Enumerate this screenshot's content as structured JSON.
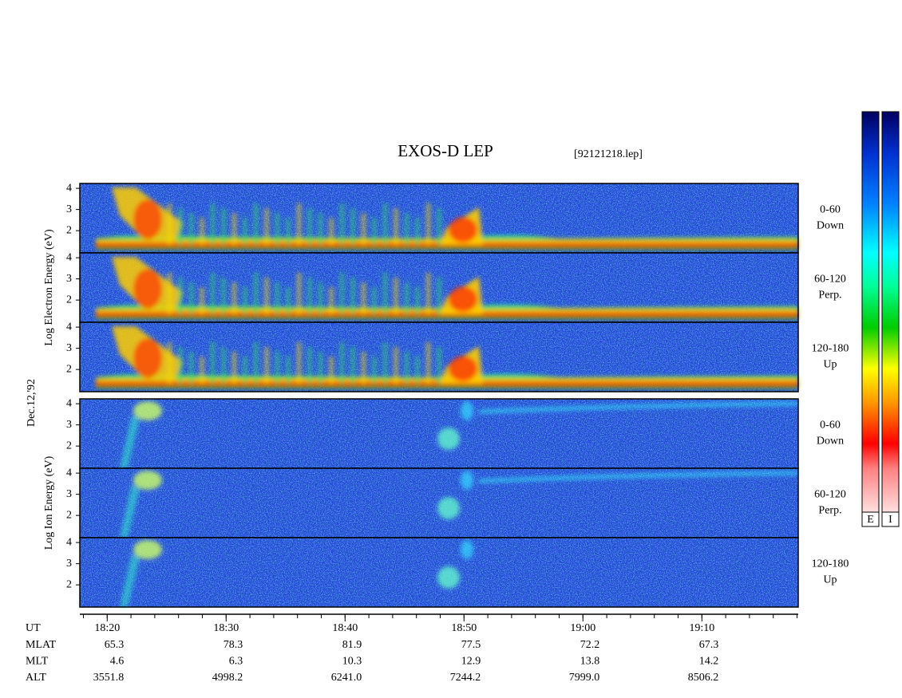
{
  "chart_data": {
    "type": "spectrogram",
    "title": "EXOS-D LEP",
    "subtitle": "[92121218.lep]",
    "date_label": "Dec.12,'92",
    "groups": [
      {
        "y_label": "Log Electron Energy (eV)",
        "species": "electron",
        "panels": [
          {
            "label": "0-60",
            "sublabel": "Down"
          },
          {
            "label": "60-120",
            "sublabel": "Perp."
          },
          {
            "label": "120-180",
            "sublabel": "Up"
          }
        ]
      },
      {
        "y_label": "Log Ion Energy (eV)",
        "species": "ion",
        "panels": [
          {
            "label": "0-60",
            "sublabel": "Down"
          },
          {
            "label": "60-120",
            "sublabel": "Perp."
          },
          {
            "label": "120-180",
            "sublabel": "Up"
          }
        ]
      }
    ],
    "ylim": [
      0.95,
      4.23
    ],
    "yticks": [
      2,
      3,
      4
    ],
    "xlim": [
      1097.7,
      1158.1
    ],
    "x_label": "UT",
    "xticks": [
      {
        "value": 1100,
        "label": "18:20"
      },
      {
        "value": 1110,
        "label": "18:30"
      },
      {
        "value": 1120,
        "label": "18:40"
      },
      {
        "value": 1130,
        "label": "18:50"
      },
      {
        "value": 1140,
        "label": "19:00"
      },
      {
        "value": 1150,
        "label": "19:10"
      }
    ],
    "orbit": [
      {
        "name": "MLAT",
        "values": [
          "65.3",
          "78.3",
          "81.9",
          "77.5",
          "72.2",
          "67.3"
        ]
      },
      {
        "name": "MLT",
        "values": [
          "4.6",
          "6.3",
          "10.3",
          "12.9",
          "13.8",
          "14.2"
        ]
      },
      {
        "name": "ALT",
        "values": [
          "3551.8",
          "4998.2",
          "6241.0",
          "7244.2",
          "7999.0",
          "8506.2"
        ]
      }
    ],
    "colorbar_labels": [
      "E",
      "I"
    ]
  }
}
